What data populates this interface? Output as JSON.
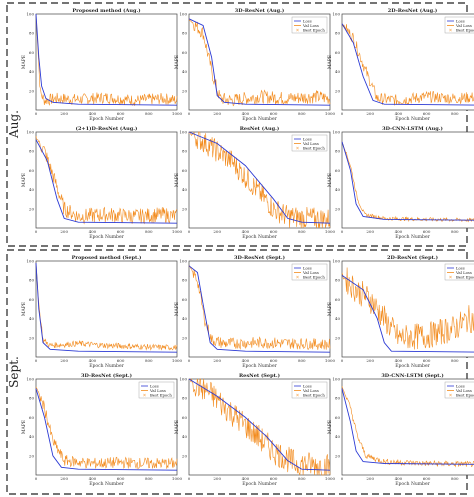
{
  "sections": [
    {
      "label": "Aug."
    },
    {
      "label": "Sept."
    }
  ],
  "legend": {
    "loss": "Loss",
    "val_loss": "Val Loss",
    "best_epoch": "Best Epoch"
  },
  "colors": {
    "loss": "#2c3ad4",
    "val_loss": "#f28a1c",
    "best_epoch": "#f28a1c"
  },
  "chart_data": [
    {
      "type": "line",
      "title": "Proposed method (Aug.)",
      "xlabel": "Epoch Number",
      "ylabel": "MAPE",
      "xlim": [
        0,
        1000
      ],
      "ylim": [
        0,
        100
      ],
      "xticks": [
        0,
        200,
        400,
        600,
        800,
        1000
      ],
      "yticks": [
        20,
        40,
        60,
        80,
        100
      ],
      "legend": false,
      "series": [
        {
          "name": "Loss",
          "points": [
            [
              0,
              100
            ],
            [
              20,
              55
            ],
            [
              40,
              25
            ],
            [
              70,
              12
            ],
            [
              120,
              8
            ],
            [
              300,
              6
            ],
            [
              1000,
              5
            ]
          ]
        },
        {
          "name": "Val Loss",
          "points": [
            [
              0,
              100
            ],
            [
              15,
              60
            ],
            [
              30,
              18
            ],
            [
              60,
              10
            ],
            [
              150,
              12
            ],
            [
              300,
              11
            ],
            [
              500,
              13
            ],
            [
              700,
              10
            ],
            [
              900,
              12
            ],
            [
              1000,
              10
            ]
          ],
          "noise": 6
        }
      ]
    },
    {
      "type": "line",
      "title": "3D-ResNet (Aug.)",
      "xlabel": "Epoch Number",
      "ylabel": "MAPE",
      "xlim": [
        0,
        1000
      ],
      "ylim": [
        0,
        100
      ],
      "xticks": [
        0,
        200,
        400,
        600,
        800,
        1000
      ],
      "yticks": [
        20,
        40,
        60,
        80,
        100
      ],
      "legend": true,
      "series": [
        {
          "name": "Loss",
          "points": [
            [
              0,
              95
            ],
            [
              100,
              88
            ],
            [
              160,
              55
            ],
            [
              200,
              15
            ],
            [
              250,
              8
            ],
            [
              400,
              6
            ],
            [
              1000,
              5
            ]
          ]
        },
        {
          "name": "Val Loss",
          "points": [
            [
              0,
              95
            ],
            [
              100,
              80
            ],
            [
              170,
              35
            ],
            [
              220,
              12
            ],
            [
              300,
              10
            ],
            [
              500,
              14
            ],
            [
              700,
              12
            ],
            [
              900,
              14
            ],
            [
              1000,
              12
            ]
          ],
          "noise": 7
        }
      ]
    },
    {
      "type": "line",
      "title": "2D-ResNet (Aug.)",
      "xlabel": "Epoch Number",
      "ylabel": "MAPE",
      "xlim": [
        0,
        1000
      ],
      "ylim": [
        0,
        100
      ],
      "xticks": [
        0,
        200,
        400,
        600,
        800,
        1000
      ],
      "yticks": [
        20,
        40,
        60,
        80,
        100
      ],
      "legend": true,
      "series": [
        {
          "name": "Loss",
          "points": [
            [
              0,
              90
            ],
            [
              80,
              70
            ],
            [
              150,
              35
            ],
            [
              220,
              10
            ],
            [
              300,
              6
            ],
            [
              1000,
              5
            ]
          ]
        },
        {
          "name": "Val Loss",
          "points": [
            [
              0,
              90
            ],
            [
              80,
              75
            ],
            [
              170,
              40
            ],
            [
              250,
              12
            ],
            [
              400,
              10
            ],
            [
              600,
              14
            ],
            [
              800,
              12
            ],
            [
              1000,
              14
            ]
          ],
          "noise": 6
        }
      ]
    },
    {
      "type": "line",
      "title": "(2+1)D-ResNet (Aug.)",
      "xlabel": "Epoch Number",
      "ylabel": "MAPE",
      "xlim": [
        0,
        1000
      ],
      "ylim": [
        0,
        100
      ],
      "xticks": [
        0,
        200,
        400,
        600,
        800,
        1000
      ],
      "yticks": [
        20,
        40,
        60,
        80,
        100
      ],
      "legend": false,
      "series": [
        {
          "name": "Loss",
          "points": [
            [
              0,
              92
            ],
            [
              80,
              70
            ],
            [
              150,
              30
            ],
            [
              200,
              10
            ],
            [
              300,
              6
            ],
            [
              1000,
              5
            ]
          ]
        },
        {
          "name": "Val Loss",
          "points": [
            [
              0,
              95
            ],
            [
              60,
              80
            ],
            [
              120,
              55
            ],
            [
              200,
              20
            ],
            [
              300,
              12
            ],
            [
              500,
              14
            ],
            [
              700,
              12
            ],
            [
              900,
              14
            ],
            [
              1000,
              12
            ]
          ],
          "noise": 8
        }
      ]
    },
    {
      "type": "line",
      "title": "ResNet (Aug.)",
      "xlabel": "Epoch Number",
      "ylabel": "MAPE",
      "xlim": [
        0,
        1000
      ],
      "ylim": [
        0,
        100
      ],
      "xticks": [
        0,
        200,
        400,
        600,
        800,
        1000
      ],
      "yticks": [
        20,
        40,
        60,
        80,
        100
      ],
      "legend": true,
      "series": [
        {
          "name": "Loss",
          "points": [
            [
              0,
              100
            ],
            [
              200,
              88
            ],
            [
              400,
              65
            ],
            [
              600,
              30
            ],
            [
              700,
              10
            ],
            [
              800,
              6
            ],
            [
              1000,
              5
            ]
          ]
        },
        {
          "name": "Val Loss",
          "points": [
            [
              0,
              100
            ],
            [
              150,
              85
            ],
            [
              300,
              70
            ],
            [
              450,
              45
            ],
            [
              600,
              20
            ],
            [
              700,
              12
            ],
            [
              850,
              10
            ],
            [
              1000,
              9
            ]
          ],
          "noise": 12
        }
      ]
    },
    {
      "type": "line",
      "title": "3D-CNN-LSTM (Aug.)",
      "xlabel": "Epoch Number",
      "ylabel": "MAPE",
      "xlim": [
        0,
        1000
      ],
      "ylim": [
        0,
        100
      ],
      "xticks": [
        0,
        200,
        400,
        600,
        800,
        1000
      ],
      "yticks": [
        20,
        40,
        60,
        80,
        100
      ],
      "legend": false,
      "series": [
        {
          "name": "Loss",
          "points": [
            [
              0,
              90
            ],
            [
              60,
              60
            ],
            [
              100,
              25
            ],
            [
              150,
              12
            ],
            [
              300,
              9
            ],
            [
              1000,
              8
            ]
          ]
        },
        {
          "name": "Val Loss",
          "points": [
            [
              0,
              90
            ],
            [
              60,
              65
            ],
            [
              110,
              30
            ],
            [
              160,
              14
            ],
            [
              300,
              10
            ],
            [
              600,
              9
            ],
            [
              1000,
              8
            ]
          ],
          "noise": 2
        }
      ]
    },
    {
      "type": "line",
      "title": "Proposed method (Sept.)",
      "xlabel": "Epoch Number",
      "ylabel": "MAPE",
      "xlim": [
        0,
        1000
      ],
      "ylim": [
        0,
        100
      ],
      "xticks": [
        0,
        200,
        400,
        600,
        800,
        1000
      ],
      "yticks": [
        20,
        40,
        60,
        80,
        100
      ],
      "legend": false,
      "series": [
        {
          "name": "Loss",
          "points": [
            [
              0,
              98
            ],
            [
              20,
              50
            ],
            [
              50,
              15
            ],
            [
              100,
              8
            ],
            [
              300,
              6
            ],
            [
              1000,
              5
            ]
          ]
        },
        {
          "name": "Val Loss",
          "points": [
            [
              0,
              98
            ],
            [
              20,
              55
            ],
            [
              50,
              18
            ],
            [
              100,
              12
            ],
            [
              300,
              14
            ],
            [
              500,
              12
            ],
            [
              700,
              11
            ],
            [
              900,
              10
            ],
            [
              1000,
              10
            ]
          ],
          "noise": 3
        }
      ]
    },
    {
      "type": "line",
      "title": "3D-ResNet (Sept.)",
      "xlabel": "Epoch Number",
      "ylabel": "MAPE",
      "xlim": [
        0,
        1000
      ],
      "ylim": [
        0,
        100
      ],
      "xticks": [
        0,
        200,
        400,
        600,
        800,
        1000
      ],
      "yticks": [
        20,
        40,
        60,
        80,
        100
      ],
      "legend": true,
      "series": [
        {
          "name": "Loss",
          "points": [
            [
              0,
              95
            ],
            [
              60,
              88
            ],
            [
              100,
              55
            ],
            [
              150,
              15
            ],
            [
              200,
              8
            ],
            [
              400,
              6
            ],
            [
              1000,
              5
            ]
          ]
        },
        {
          "name": "Val Loss",
          "points": [
            [
              0,
              95
            ],
            [
              60,
              80
            ],
            [
              110,
              40
            ],
            [
              160,
              18
            ],
            [
              250,
              14
            ],
            [
              500,
              15
            ],
            [
              800,
              14
            ],
            [
              1000,
              13
            ]
          ],
          "noise": 6
        }
      ]
    },
    {
      "type": "line",
      "title": "2D-ResNet (Sept.)",
      "xlabel": "Epoch Number",
      "ylabel": "MAPE",
      "xlim": [
        0,
        1000
      ],
      "ylim": [
        0,
        100
      ],
      "xticks": [
        0,
        200,
        400,
        600,
        800,
        1000
      ],
      "yticks": [
        20,
        40,
        60,
        80,
        100
      ],
      "legend": true,
      "series": [
        {
          "name": "Loss",
          "points": [
            [
              0,
              85
            ],
            [
              150,
              70
            ],
            [
              250,
              40
            ],
            [
              300,
              15
            ],
            [
              350,
              6
            ],
            [
              1000,
              5
            ]
          ]
        },
        {
          "name": "Val Loss",
          "points": [
            [
              0,
              85
            ],
            [
              100,
              70
            ],
            [
              200,
              60
            ],
            [
              300,
              40
            ],
            [
              400,
              20
            ],
            [
              600,
              22
            ],
            [
              800,
              30
            ],
            [
              900,
              40
            ],
            [
              1000,
              35
            ]
          ],
          "noise": 14
        }
      ]
    },
    {
      "type": "line",
      "title": "3D-ResNet (Sept.)",
      "xlabel": "Epoch Number",
      "ylabel": "MAPE",
      "xlim": [
        0,
        1000
      ],
      "ylim": [
        0,
        100
      ],
      "xticks": [
        0,
        200,
        400,
        600,
        800,
        1000
      ],
      "yticks": [
        20,
        40,
        60,
        80,
        100
      ],
      "legend": true,
      "series": [
        {
          "name": "Loss",
          "points": [
            [
              0,
              90
            ],
            [
              60,
              60
            ],
            [
              120,
              20
            ],
            [
              180,
              8
            ],
            [
              300,
              6
            ],
            [
              1000,
              5
            ]
          ]
        },
        {
          "name": "Val Loss",
          "points": [
            [
              0,
              92
            ],
            [
              60,
              70
            ],
            [
              120,
              35
            ],
            [
              200,
              15
            ],
            [
              400,
              12
            ],
            [
              600,
              13
            ],
            [
              800,
              12
            ],
            [
              1000,
              12
            ]
          ],
          "noise": 6
        }
      ]
    },
    {
      "type": "line",
      "title": "ResNet (Sept.)",
      "xlabel": "Epoch Number",
      "ylabel": "MAPE",
      "xlim": [
        0,
        1000
      ],
      "ylim": [
        0,
        100
      ],
      "xticks": [
        0,
        200,
        400,
        600,
        800,
        1000
      ],
      "yticks": [
        20,
        40,
        60,
        80,
        100
      ],
      "legend": true,
      "series": [
        {
          "name": "Loss",
          "points": [
            [
              0,
              100
            ],
            [
              200,
              82
            ],
            [
              400,
              60
            ],
            [
              550,
              40
            ],
            [
              700,
              15
            ],
            [
              800,
              6
            ],
            [
              1000,
              5
            ]
          ]
        },
        {
          "name": "Val Loss",
          "points": [
            [
              0,
              100
            ],
            [
              150,
              85
            ],
            [
              300,
              65
            ],
            [
              450,
              45
            ],
            [
              600,
              25
            ],
            [
              750,
              12
            ],
            [
              900,
              10
            ],
            [
              1000,
              9
            ]
          ],
          "noise": 14
        }
      ]
    },
    {
      "type": "line",
      "title": "3D-CNN-LSTM (Sept.)",
      "xlabel": "Epoch Number",
      "ylabel": "MAPE",
      "xlim": [
        0,
        1000
      ],
      "ylim": [
        0,
        100
      ],
      "xticks": [
        0,
        200,
        400,
        600,
        800,
        1000
      ],
      "yticks": [
        20,
        40,
        60,
        80,
        100
      ],
      "legend": true,
      "series": [
        {
          "name": "Loss",
          "points": [
            [
              0,
              90
            ],
            [
              60,
              55
            ],
            [
              100,
              25
            ],
            [
              150,
              14
            ],
            [
              300,
              12
            ],
            [
              1000,
              11
            ]
          ]
        },
        {
          "name": "Val Loss",
          "points": [
            [
              0,
              92
            ],
            [
              60,
              70
            ],
            [
              110,
              40
            ],
            [
              170,
              20
            ],
            [
              300,
              14
            ],
            [
              600,
              12
            ],
            [
              1000,
              11
            ]
          ],
          "noise": 3
        }
      ]
    }
  ]
}
